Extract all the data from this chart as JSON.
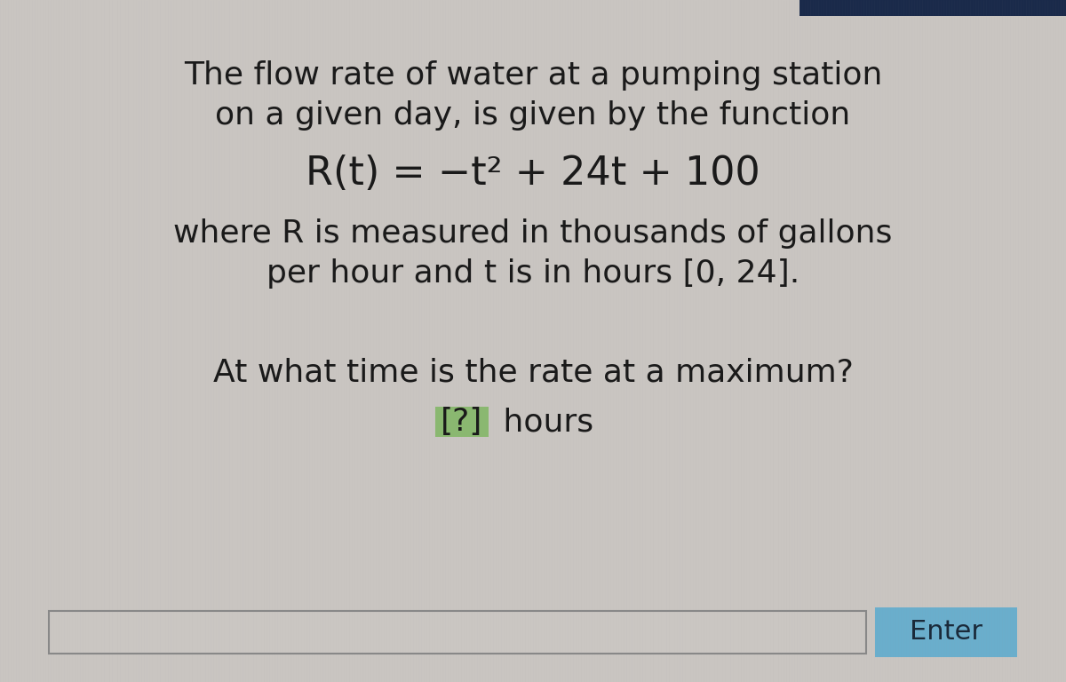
{
  "bg_color": "#c9c5c1",
  "text_color": "#1a1a1a",
  "line1": "The flow rate of water at a pumping station",
  "line2": "on a given day, is given by the function",
  "formula": "R(t) = −t² + 24t + 100",
  "line3": "where R is measured in thousands of gallons",
  "line4": "per hour and t is in hours [0, 24].",
  "question1": "At what time is the rate at a maximum?",
  "question2_bracket": "[?]",
  "question2_hours": " hours",
  "input_box_border": "#888888",
  "input_box_face": "#cac6c2",
  "enter_btn_color": "#6aaecc",
  "enter_btn_text": "Enter",
  "enter_btn_text_color": "#1a2a3a",
  "topbar_color": "#1a2a4a",
  "title_fontsize": 26,
  "formula_fontsize": 32,
  "body_fontsize": 26,
  "question_fontsize": 26,
  "bracket_bg_color": "#8ab870",
  "bracket_text_color": "#1a1a1a"
}
